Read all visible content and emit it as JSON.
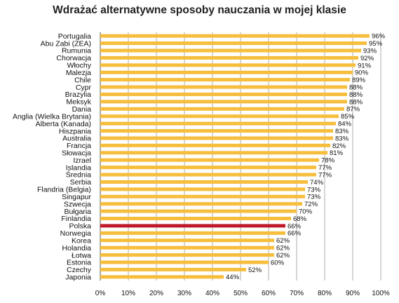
{
  "chart_data": {
    "type": "bar",
    "orientation": "horizontal",
    "title": "Wdrażać alternatywne sposoby nauczania w mojej klasie",
    "categories": [
      "Portugalia",
      "Abu Zabi (ZEA)",
      "Rumunia",
      "Chorwacja",
      "Włochy",
      "Malezja",
      "Chile",
      "Cypr",
      "Brazylia",
      "Meksyk",
      "Dania",
      "Anglia (Wielka Brytania)",
      "Alberta (Kanada)",
      "Hiszpania",
      "Australia",
      "Francja",
      "Słowacja",
      "Izrael",
      "Islandia",
      "Średnia",
      "Serbia",
      "Flandria (Belgia)",
      "Singapur",
      "Szwecja",
      "Bułgaria",
      "Finlandia",
      "Polska",
      "Norwegia",
      "Korea",
      "Holandia",
      "Łotwa",
      "Estonia",
      "Czechy",
      "Japonia"
    ],
    "values": [
      96,
      95,
      93,
      92,
      91,
      90,
      89,
      88,
      88,
      88,
      87,
      85,
      84,
      83,
      83,
      82,
      81,
      78,
      77,
      77,
      74,
      73,
      73,
      72,
      70,
      68,
      66,
      66,
      62,
      62,
      62,
      60,
      52,
      44
    ],
    "value_labels": [
      "96%",
      "95%",
      "93%",
      "92%",
      "91%",
      "90%",
      "89%",
      "88%",
      "88%",
      "88%",
      "87%",
      "85%",
      "84%",
      "83%",
      "83%",
      "82%",
      "81%",
      "78%",
      "77%",
      "77%",
      "74%",
      "73%",
      "73%",
      "72%",
      "70%",
      "68%",
      "66%",
      "66%",
      "62%",
      "62%",
      "62%",
      "60%",
      "52%",
      "44%"
    ],
    "highlight": "Polska",
    "colors": {
      "bar": "#F6BE3C",
      "highlight": "#C0192B",
      "grid": "#999999"
    },
    "xlim": [
      0,
      100
    ],
    "x_ticks": [
      "0%",
      "10%",
      "20%",
      "30%",
      "40%",
      "50%",
      "60%",
      "70%",
      "80%",
      "90%",
      "100%"
    ],
    "grid": true
  }
}
